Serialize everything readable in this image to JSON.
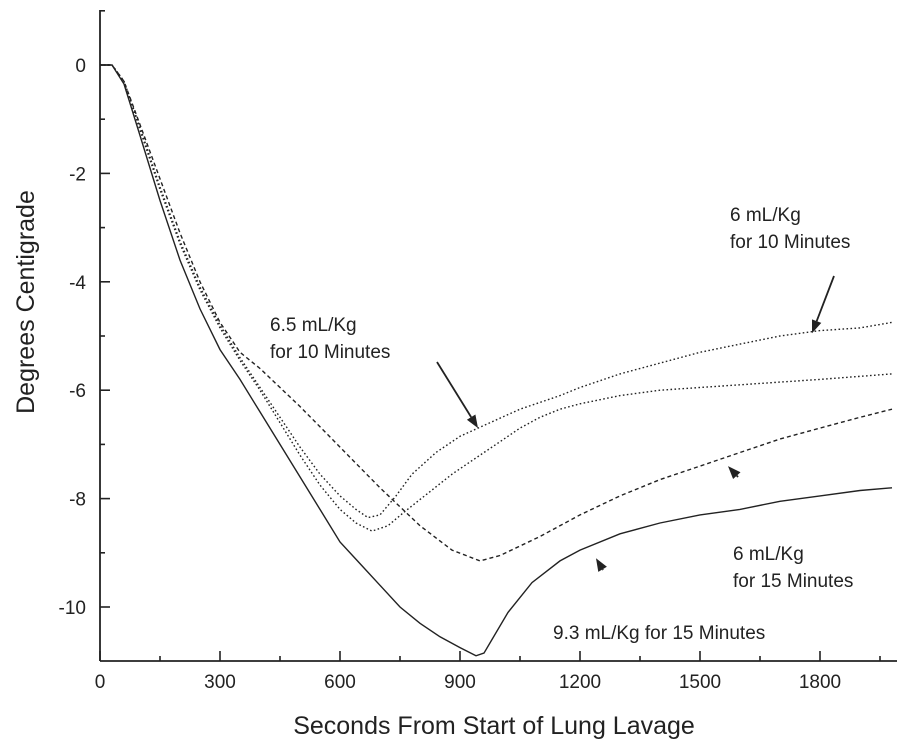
{
  "chart_data": {
    "type": "line",
    "xlabel": "Seconds From Start of Lung Lavage",
    "ylabel": "Degrees Centigrade",
    "xlim": [
      0,
      1980
    ],
    "ylim": [
      -11,
      1
    ],
    "x_ticks": [
      0,
      300,
      600,
      900,
      1200,
      1500,
      1800
    ],
    "y_ticks": [
      0,
      -2,
      -4,
      -6,
      -8,
      -10
    ],
    "grid": false,
    "series": [
      {
        "style": "solid",
        "points": [
          [
            0,
            0
          ],
          [
            30,
            0
          ],
          [
            60,
            -0.35
          ],
          [
            100,
            -1.3
          ],
          [
            150,
            -2.5
          ],
          [
            200,
            -3.6
          ],
          [
            250,
            -4.5
          ],
          [
            300,
            -5.25
          ],
          [
            350,
            -5.8
          ],
          [
            400,
            -6.4
          ],
          [
            450,
            -7.0
          ],
          [
            500,
            -7.6
          ],
          [
            550,
            -8.2
          ],
          [
            600,
            -8.8
          ],
          [
            650,
            -9.2
          ],
          [
            700,
            -9.6
          ],
          [
            750,
            -10.0
          ],
          [
            800,
            -10.3
          ],
          [
            850,
            -10.55
          ],
          [
            900,
            -10.75
          ],
          [
            940,
            -10.9
          ],
          [
            960,
            -10.85
          ],
          [
            980,
            -10.6
          ],
          [
            1020,
            -10.1
          ],
          [
            1080,
            -9.55
          ],
          [
            1150,
            -9.15
          ],
          [
            1200,
            -8.95
          ],
          [
            1300,
            -8.65
          ],
          [
            1400,
            -8.45
          ],
          [
            1500,
            -8.3
          ],
          [
            1600,
            -8.2
          ],
          [
            1700,
            -8.05
          ],
          [
            1800,
            -7.95
          ],
          [
            1900,
            -7.85
          ],
          [
            1980,
            -7.8
          ]
        ]
      },
      {
        "style": "dotted",
        "points": [
          [
            0,
            0
          ],
          [
            30,
            0
          ],
          [
            60,
            -0.3
          ],
          [
            100,
            -1.2
          ],
          [
            150,
            -2.3
          ],
          [
            200,
            -3.3
          ],
          [
            250,
            -4.15
          ],
          [
            300,
            -4.85
          ],
          [
            350,
            -5.45
          ],
          [
            400,
            -6.0
          ],
          [
            450,
            -6.6
          ],
          [
            500,
            -7.2
          ],
          [
            550,
            -7.75
          ],
          [
            600,
            -8.2
          ],
          [
            640,
            -8.45
          ],
          [
            680,
            -8.6
          ],
          [
            720,
            -8.5
          ],
          [
            760,
            -8.25
          ],
          [
            820,
            -7.9
          ],
          [
            880,
            -7.55
          ],
          [
            950,
            -7.2
          ],
          [
            1000,
            -6.95
          ],
          [
            1050,
            -6.7
          ],
          [
            1100,
            -6.5
          ],
          [
            1150,
            -6.35
          ],
          [
            1200,
            -6.25
          ],
          [
            1300,
            -6.1
          ],
          [
            1400,
            -6.0
          ],
          [
            1500,
            -5.95
          ],
          [
            1600,
            -5.9
          ],
          [
            1700,
            -5.85
          ],
          [
            1800,
            -5.8
          ],
          [
            1980,
            -5.7
          ]
        ]
      },
      {
        "style": "dotted",
        "points": [
          [
            0,
            0
          ],
          [
            30,
            0
          ],
          [
            60,
            -0.3
          ],
          [
            100,
            -1.15
          ],
          [
            150,
            -2.25
          ],
          [
            200,
            -3.25
          ],
          [
            250,
            -4.1
          ],
          [
            300,
            -4.8
          ],
          [
            350,
            -5.4
          ],
          [
            400,
            -5.95
          ],
          [
            450,
            -6.5
          ],
          [
            500,
            -7.05
          ],
          [
            550,
            -7.55
          ],
          [
            600,
            -7.95
          ],
          [
            640,
            -8.2
          ],
          [
            670,
            -8.35
          ],
          [
            700,
            -8.3
          ],
          [
            740,
            -7.95
          ],
          [
            780,
            -7.55
          ],
          [
            840,
            -7.15
          ],
          [
            900,
            -6.85
          ],
          [
            960,
            -6.65
          ],
          [
            1050,
            -6.35
          ],
          [
            1150,
            -6.1
          ],
          [
            1200,
            -5.95
          ],
          [
            1300,
            -5.7
          ],
          [
            1400,
            -5.5
          ],
          [
            1500,
            -5.3
          ],
          [
            1600,
            -5.15
          ],
          [
            1700,
            -5.0
          ],
          [
            1800,
            -4.9
          ],
          [
            1900,
            -4.85
          ],
          [
            1980,
            -4.75
          ]
        ]
      },
      {
        "style": "dashed",
        "points": [
          [
            0,
            0
          ],
          [
            30,
            0
          ],
          [
            60,
            -0.3
          ],
          [
            100,
            -1.1
          ],
          [
            150,
            -2.1
          ],
          [
            200,
            -3.1
          ],
          [
            250,
            -4.0
          ],
          [
            300,
            -4.75
          ],
          [
            350,
            -5.3
          ],
          [
            400,
            -5.6
          ],
          [
            500,
            -6.3
          ],
          [
            600,
            -7.05
          ],
          [
            700,
            -7.8
          ],
          [
            800,
            -8.5
          ],
          [
            880,
            -8.95
          ],
          [
            950,
            -9.15
          ],
          [
            1000,
            -9.05
          ],
          [
            1100,
            -8.7
          ],
          [
            1200,
            -8.3
          ],
          [
            1300,
            -7.95
          ],
          [
            1400,
            -7.65
          ],
          [
            1500,
            -7.4
          ],
          [
            1600,
            -7.15
          ],
          [
            1700,
            -6.9
          ],
          [
            1800,
            -6.7
          ],
          [
            1900,
            -6.5
          ],
          [
            1980,
            -6.35
          ]
        ]
      }
    ],
    "annotations": [
      {
        "lines": [
          "6 mL/Kg",
          "for 10 Minutes"
        ],
        "arrow_to": [
          1780,
          -4.95
        ]
      },
      {
        "lines": [
          "6.5 mL/Kg",
          "for 10 Minutes"
        ],
        "arrow_to": [
          945,
          -6.7
        ]
      },
      {
        "lines": [
          "6 mL/Kg",
          "for 15 Minutes"
        ],
        "arrow_to": [
          1570,
          -7.4
        ]
      },
      {
        "lines": [
          "9.3 mL/Kg  for 15 Minutes"
        ],
        "arrow_to": [
          1240,
          -9.1
        ]
      }
    ]
  }
}
